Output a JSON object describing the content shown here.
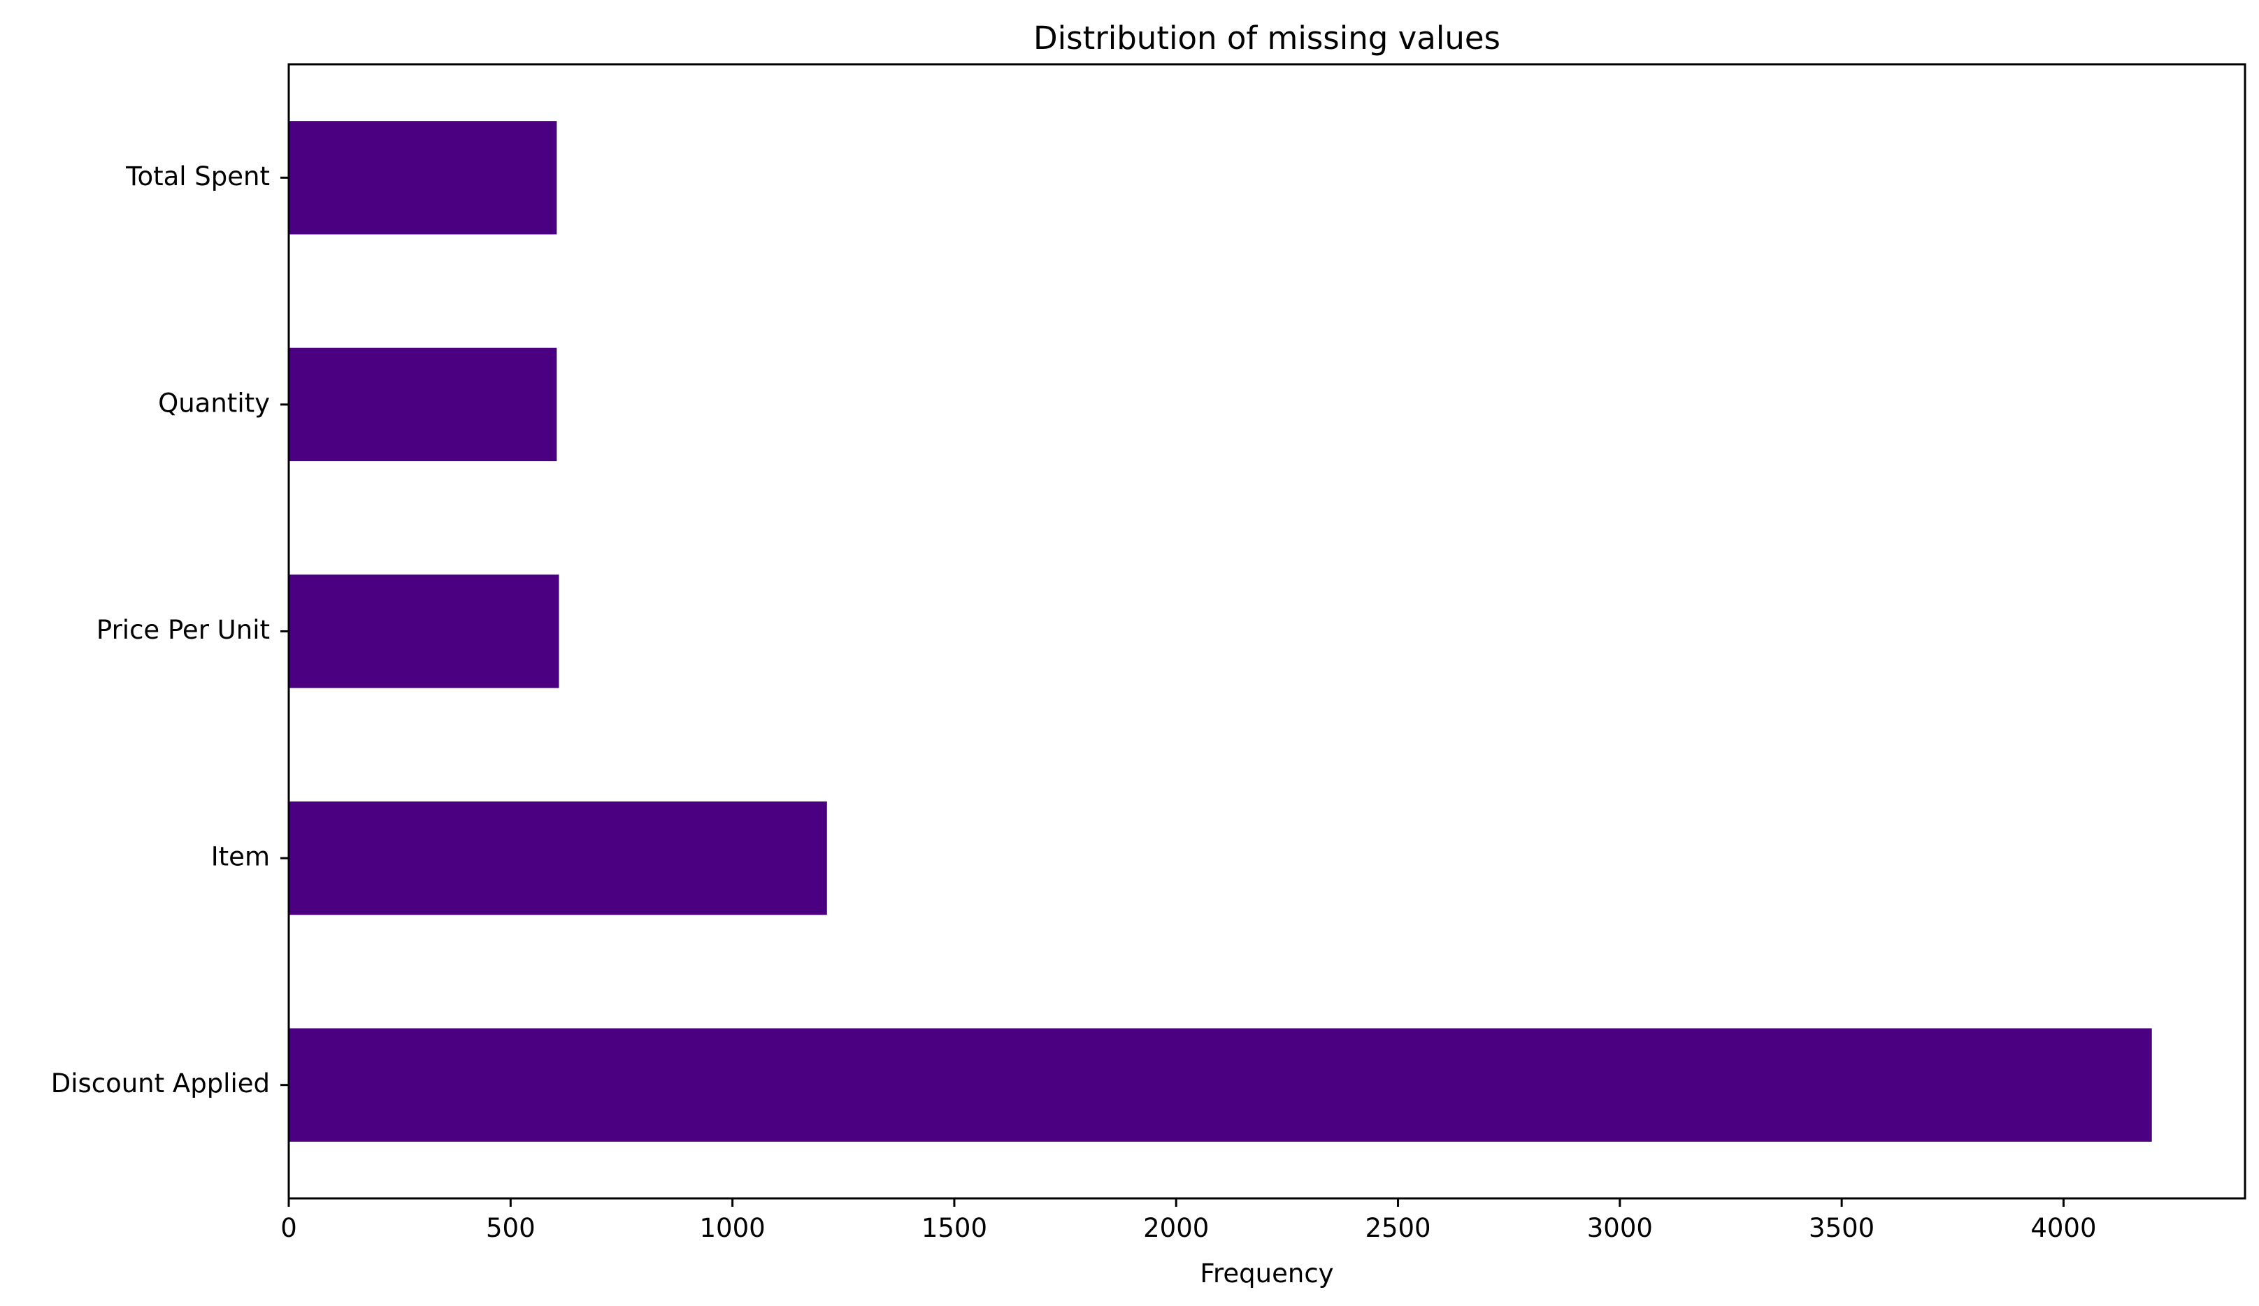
{
  "chart_data": {
    "type": "bar",
    "orientation": "horizontal",
    "title": "Distribution of missing values",
    "xlabel": "Frequency",
    "ylabel": "",
    "categories": [
      "Discount Applied",
      "Item",
      "Price Per Unit",
      "Quantity",
      "Total Spent"
    ],
    "values": [
      4199,
      1213,
      609,
      604,
      604
    ],
    "xlim": [
      0,
      4409
    ],
    "xticks": [
      0,
      500,
      1000,
      1500,
      2000,
      2500,
      3000,
      3500,
      4000
    ],
    "grid": false,
    "legend": "none",
    "bar_color": "#4b0082"
  }
}
